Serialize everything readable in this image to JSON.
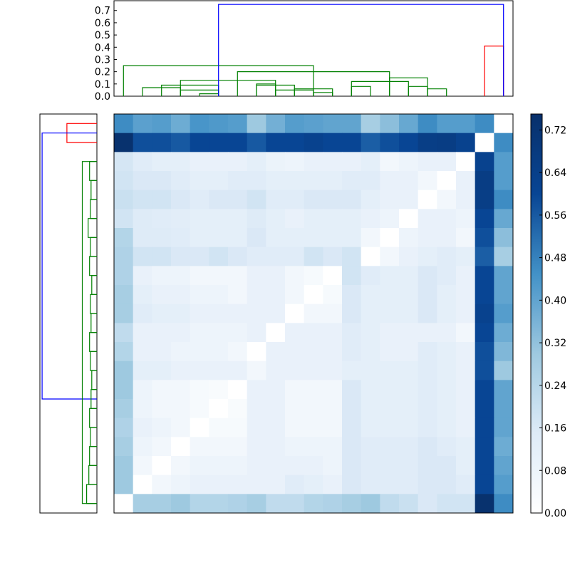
{
  "chart_data": [
    {
      "type": "dendrogram",
      "panel": "top",
      "orientation": "top",
      "ylim": [
        0,
        0.78
      ],
      "yticks": [
        "0.0",
        "0.1",
        "0.2",
        "0.3",
        "0.4",
        "0.5",
        "0.6",
        "0.7"
      ],
      "ytick_values": [
        0.0,
        0.1,
        0.2,
        0.3,
        0.4,
        0.5,
        0.6,
        0.7
      ],
      "leaf_count": 21,
      "colors": {
        "cluster_a": "#008000",
        "cluster_b": "#ff0000",
        "above_threshold": "#0000ff"
      },
      "links": [
        {
          "left": 4,
          "right": 5,
          "height": 0.02,
          "color": "cluster_a"
        },
        {
          "left": 3,
          "right": 5,
          "height": 0.05,
          "color": "cluster_a"
        },
        {
          "left": 2,
          "right": 5,
          "height": 0.09,
          "color": "cluster_a"
        },
        {
          "left": 1,
          "right": 3,
          "height": 0.07,
          "color": "cluster_a"
        },
        {
          "left": 10,
          "right": 11,
          "height": 0.03,
          "color": "cluster_a"
        },
        {
          "left": 9,
          "right": 11,
          "height": 0.06,
          "color": "cluster_a"
        },
        {
          "left": 8,
          "right": 10,
          "height": 0.05,
          "color": "cluster_a"
        },
        {
          "left": 7,
          "right": 9,
          "height": 0.09,
          "color": "cluster_a"
        },
        {
          "left": 7,
          "right": 8,
          "height": 0.1,
          "color": "cluster_a"
        },
        {
          "left": 3,
          "right": 8,
          "height": 0.13,
          "color": "cluster_a"
        },
        {
          "left": 12,
          "right": 13,
          "height": 0.08,
          "color": "cluster_a"
        },
        {
          "left": 16,
          "right": 17,
          "height": 0.06,
          "color": "cluster_a"
        },
        {
          "left": 15,
          "right": 16,
          "height": 0.08,
          "color": "cluster_a"
        },
        {
          "left": 14,
          "right": 16,
          "height": 0.15,
          "color": "cluster_a"
        },
        {
          "left": 12,
          "right": 15,
          "height": 0.12,
          "color": "cluster_a"
        },
        {
          "left": 6,
          "right": 14,
          "height": 0.2,
          "color": "cluster_a"
        },
        {
          "left": 0,
          "right": 10,
          "height": 0.25,
          "color": "cluster_a"
        },
        {
          "left": 19,
          "right": 20,
          "height": 0.41,
          "color": "cluster_b"
        },
        {
          "left": 5,
          "right": 20,
          "height": 0.75,
          "color": "above_threshold"
        }
      ]
    },
    {
      "type": "dendrogram",
      "panel": "left",
      "orientation": "left",
      "leaf_count": 21,
      "colors": {
        "cluster_a": "#008000",
        "cluster_b": "#ff0000",
        "above_threshold": "#0000ff"
      },
      "links": [
        {
          "top": 0,
          "bottom": 1,
          "height": 0.41,
          "color": "cluster_b"
        },
        {
          "top": 0.5,
          "bottom": 14.5,
          "height": 0.75,
          "color": "above_threshold"
        },
        {
          "top": 2,
          "bottom": 20,
          "height": 0.2,
          "color": "cluster_a"
        }
      ]
    },
    {
      "type": "heatmap",
      "rows": 21,
      "cols": 21,
      "colormap": "Blues",
      "vmin": 0,
      "vmax": 0.75,
      "values": [
        [
          0.46,
          0.41,
          0.42,
          0.38,
          0.44,
          0.43,
          0.42,
          0.3,
          0.37,
          0.42,
          0.41,
          0.4,
          0.4,
          0.28,
          0.33,
          0.39,
          0.46,
          0.42,
          0.42,
          0.46,
          0.0
        ],
        [
          0.74,
          0.58,
          0.58,
          0.56,
          0.6,
          0.6,
          0.6,
          0.56,
          0.6,
          0.6,
          0.62,
          0.6,
          0.6,
          0.55,
          0.58,
          0.6,
          0.65,
          0.66,
          0.62,
          0.0,
          0.46
        ],
        [
          0.17,
          0.14,
          0.12,
          0.12,
          0.1,
          0.1,
          0.1,
          0.12,
          0.09,
          0.08,
          0.1,
          0.1,
          0.1,
          0.12,
          0.06,
          0.08,
          0.1,
          0.1,
          0.0,
          0.62,
          0.42
        ],
        [
          0.18,
          0.16,
          0.16,
          0.14,
          0.12,
          0.12,
          0.14,
          0.14,
          0.12,
          0.12,
          0.12,
          0.12,
          0.14,
          0.14,
          0.1,
          0.1,
          0.06,
          0.0,
          0.1,
          0.66,
          0.42
        ],
        [
          0.2,
          0.18,
          0.18,
          0.16,
          0.14,
          0.16,
          0.16,
          0.18,
          0.14,
          0.14,
          0.16,
          0.16,
          0.16,
          0.12,
          0.1,
          0.1,
          0.0,
          0.06,
          0.1,
          0.65,
          0.46
        ],
        [
          0.18,
          0.15,
          0.14,
          0.13,
          0.12,
          0.12,
          0.12,
          0.15,
          0.12,
          0.1,
          0.12,
          0.12,
          0.12,
          0.1,
          0.08,
          0.0,
          0.1,
          0.1,
          0.08,
          0.6,
          0.39
        ],
        [
          0.25,
          0.15,
          0.15,
          0.14,
          0.12,
          0.12,
          0.12,
          0.16,
          0.12,
          0.12,
          0.12,
          0.12,
          0.12,
          0.06,
          0.0,
          0.08,
          0.1,
          0.1,
          0.06,
          0.58,
          0.33
        ],
        [
          0.26,
          0.18,
          0.18,
          0.16,
          0.16,
          0.18,
          0.16,
          0.14,
          0.14,
          0.14,
          0.18,
          0.16,
          0.18,
          0.0,
          0.06,
          0.1,
          0.12,
          0.14,
          0.12,
          0.55,
          0.28
        ],
        [
          0.26,
          0.1,
          0.08,
          0.08,
          0.06,
          0.06,
          0.06,
          0.1,
          0.1,
          0.06,
          0.04,
          0.0,
          0.18,
          0.14,
          0.12,
          0.12,
          0.16,
          0.14,
          0.1,
          0.6,
          0.4
        ],
        [
          0.28,
          0.12,
          0.1,
          0.1,
          0.08,
          0.08,
          0.06,
          0.1,
          0.1,
          0.06,
          0.0,
          0.04,
          0.16,
          0.12,
          0.12,
          0.12,
          0.16,
          0.12,
          0.1,
          0.6,
          0.4
        ],
        [
          0.28,
          0.14,
          0.12,
          0.12,
          0.1,
          0.1,
          0.1,
          0.1,
          0.1,
          0.0,
          0.06,
          0.06,
          0.16,
          0.12,
          0.12,
          0.12,
          0.16,
          0.12,
          0.1,
          0.62,
          0.42
        ],
        [
          0.22,
          0.1,
          0.1,
          0.1,
          0.08,
          0.08,
          0.08,
          0.1,
          0.0,
          0.1,
          0.1,
          0.1,
          0.14,
          0.12,
          0.1,
          0.1,
          0.1,
          0.1,
          0.06,
          0.6,
          0.38
        ],
        [
          0.25,
          0.1,
          0.1,
          0.08,
          0.08,
          0.08,
          0.06,
          0.0,
          0.1,
          0.1,
          0.1,
          0.1,
          0.14,
          0.12,
          0.1,
          0.1,
          0.14,
          0.12,
          0.1,
          0.58,
          0.35
        ],
        [
          0.3,
          0.12,
          0.12,
          0.1,
          0.1,
          0.1,
          0.1,
          0.06,
          0.1,
          0.1,
          0.1,
          0.1,
          0.12,
          0.12,
          0.12,
          0.12,
          0.14,
          0.12,
          0.1,
          0.58,
          0.3
        ],
        [
          0.3,
          0.08,
          0.06,
          0.06,
          0.04,
          0.03,
          0.0,
          0.1,
          0.1,
          0.06,
          0.06,
          0.06,
          0.16,
          0.12,
          0.12,
          0.12,
          0.14,
          0.12,
          0.1,
          0.6,
          0.4
        ],
        [
          0.28,
          0.08,
          0.06,
          0.06,
          0.04,
          0.0,
          0.03,
          0.1,
          0.1,
          0.06,
          0.06,
          0.06,
          0.16,
          0.12,
          0.12,
          0.12,
          0.14,
          0.12,
          0.1,
          0.6,
          0.4
        ],
        [
          0.26,
          0.1,
          0.08,
          0.06,
          0.0,
          0.04,
          0.04,
          0.1,
          0.1,
          0.06,
          0.06,
          0.06,
          0.16,
          0.12,
          0.12,
          0.12,
          0.14,
          0.12,
          0.1,
          0.6,
          0.4
        ],
        [
          0.28,
          0.08,
          0.06,
          0.0,
          0.06,
          0.06,
          0.06,
          0.1,
          0.1,
          0.08,
          0.08,
          0.08,
          0.16,
          0.14,
          0.14,
          0.14,
          0.16,
          0.14,
          0.12,
          0.6,
          0.38
        ],
        [
          0.3,
          0.06,
          0.0,
          0.06,
          0.08,
          0.08,
          0.08,
          0.1,
          0.1,
          0.1,
          0.1,
          0.08,
          0.16,
          0.14,
          0.14,
          0.14,
          0.16,
          0.16,
          0.12,
          0.6,
          0.4
        ],
        [
          0.3,
          0.0,
          0.06,
          0.08,
          0.1,
          0.1,
          0.1,
          0.1,
          0.1,
          0.14,
          0.12,
          0.1,
          0.16,
          0.14,
          0.14,
          0.14,
          0.16,
          0.16,
          0.14,
          0.6,
          0.42
        ],
        [
          0.0,
          0.28,
          0.28,
          0.3,
          0.25,
          0.25,
          0.26,
          0.28,
          0.22,
          0.22,
          0.25,
          0.26,
          0.28,
          0.3,
          0.22,
          0.2,
          0.16,
          0.18,
          0.18,
          0.74,
          0.46
        ]
      ]
    },
    {
      "type": "colorbar",
      "colormap": "Blues",
      "vmin": 0,
      "vmax": 0.75,
      "ticks": [
        "0.00",
        "0.08",
        "0.16",
        "0.24",
        "0.32",
        "0.40",
        "0.48",
        "0.56",
        "0.64",
        "0.72"
      ],
      "tick_values": [
        0.0,
        0.08,
        0.16,
        0.24,
        0.32,
        0.4,
        0.48,
        0.56,
        0.64,
        0.72
      ]
    }
  ]
}
